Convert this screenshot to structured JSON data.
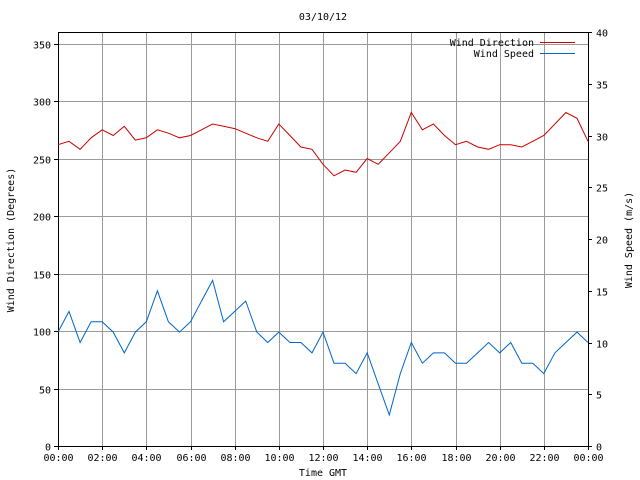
{
  "chart_data": {
    "type": "line",
    "title": "03/10/12",
    "xlabel": "Time GMT",
    "ylabel_left": "Wind Direction (Degrees)",
    "ylabel_right": "Wind Speed (m/s)",
    "x_ticks": [
      "00:00",
      "02:00",
      "04:00",
      "06:00",
      "08:00",
      "10:00",
      "12:00",
      "14:00",
      "16:00",
      "18:00",
      "20:00",
      "22:00",
      "00:00"
    ],
    "x_range_hours": [
      0,
      24
    ],
    "y_left_range": [
      0,
      360
    ],
    "y_left_ticks": [
      0,
      50,
      100,
      150,
      200,
      250,
      300,
      350
    ],
    "y_right_range": [
      0,
      40
    ],
    "y_right_ticks": [
      0,
      5,
      10,
      15,
      20,
      25,
      30,
      35,
      40
    ],
    "grid": true,
    "legend_position": "top-right",
    "series": [
      {
        "name": "Wind Direction",
        "axis": "left",
        "color": "#cc0000",
        "x_hours": [
          0,
          0.5,
          1,
          1.5,
          2,
          2.5,
          3,
          3.5,
          4,
          4.5,
          5,
          5.5,
          6,
          6.5,
          7,
          7.5,
          8,
          8.5,
          9,
          9.5,
          10,
          10.5,
          11,
          11.5,
          12,
          12.5,
          13,
          13.5,
          14,
          14.5,
          15,
          15.5,
          16,
          16.5,
          17,
          17.5,
          18,
          18.5,
          19,
          19.5,
          20,
          20.5,
          21,
          21.5,
          22,
          22.5,
          23,
          23.5,
          24
        ],
        "values": [
          262,
          265,
          258,
          268,
          275,
          270,
          278,
          266,
          268,
          275,
          272,
          268,
          270,
          275,
          280,
          278,
          276,
          272,
          268,
          265,
          280,
          270,
          260,
          258,
          245,
          235,
          240,
          238,
          250,
          245,
          255,
          265,
          290,
          275,
          280,
          270,
          262,
          265,
          260,
          258,
          262,
          262,
          260,
          265,
          270,
          280,
          290,
          285,
          265
        ]
      },
      {
        "name": "Wind Speed",
        "axis": "right",
        "color": "#0066cc",
        "x_hours": [
          0,
          0.5,
          1,
          1.5,
          2,
          2.5,
          3,
          3.5,
          4,
          4.5,
          5,
          5.5,
          6,
          6.5,
          7,
          7.5,
          8,
          8.5,
          9,
          9.5,
          10,
          10.5,
          11,
          11.5,
          12,
          12.5,
          13,
          13.5,
          14,
          14.5,
          15,
          15.5,
          16,
          16.5,
          17,
          17.5,
          18,
          18.5,
          19,
          19.5,
          20,
          20.5,
          21,
          21.5,
          22,
          22.5,
          23,
          23.5,
          24
        ],
        "values": [
          11,
          13,
          10,
          12,
          12,
          11,
          9,
          11,
          12,
          15,
          12,
          11,
          12,
          14,
          16,
          12,
          13,
          14,
          11,
          10,
          11,
          10,
          10,
          9,
          11,
          8,
          8,
          7,
          9,
          6,
          3,
          7,
          10,
          8,
          9,
          9,
          8,
          8,
          9,
          10,
          9,
          10,
          8,
          8,
          7,
          9,
          10,
          11,
          10
        ]
      }
    ]
  }
}
